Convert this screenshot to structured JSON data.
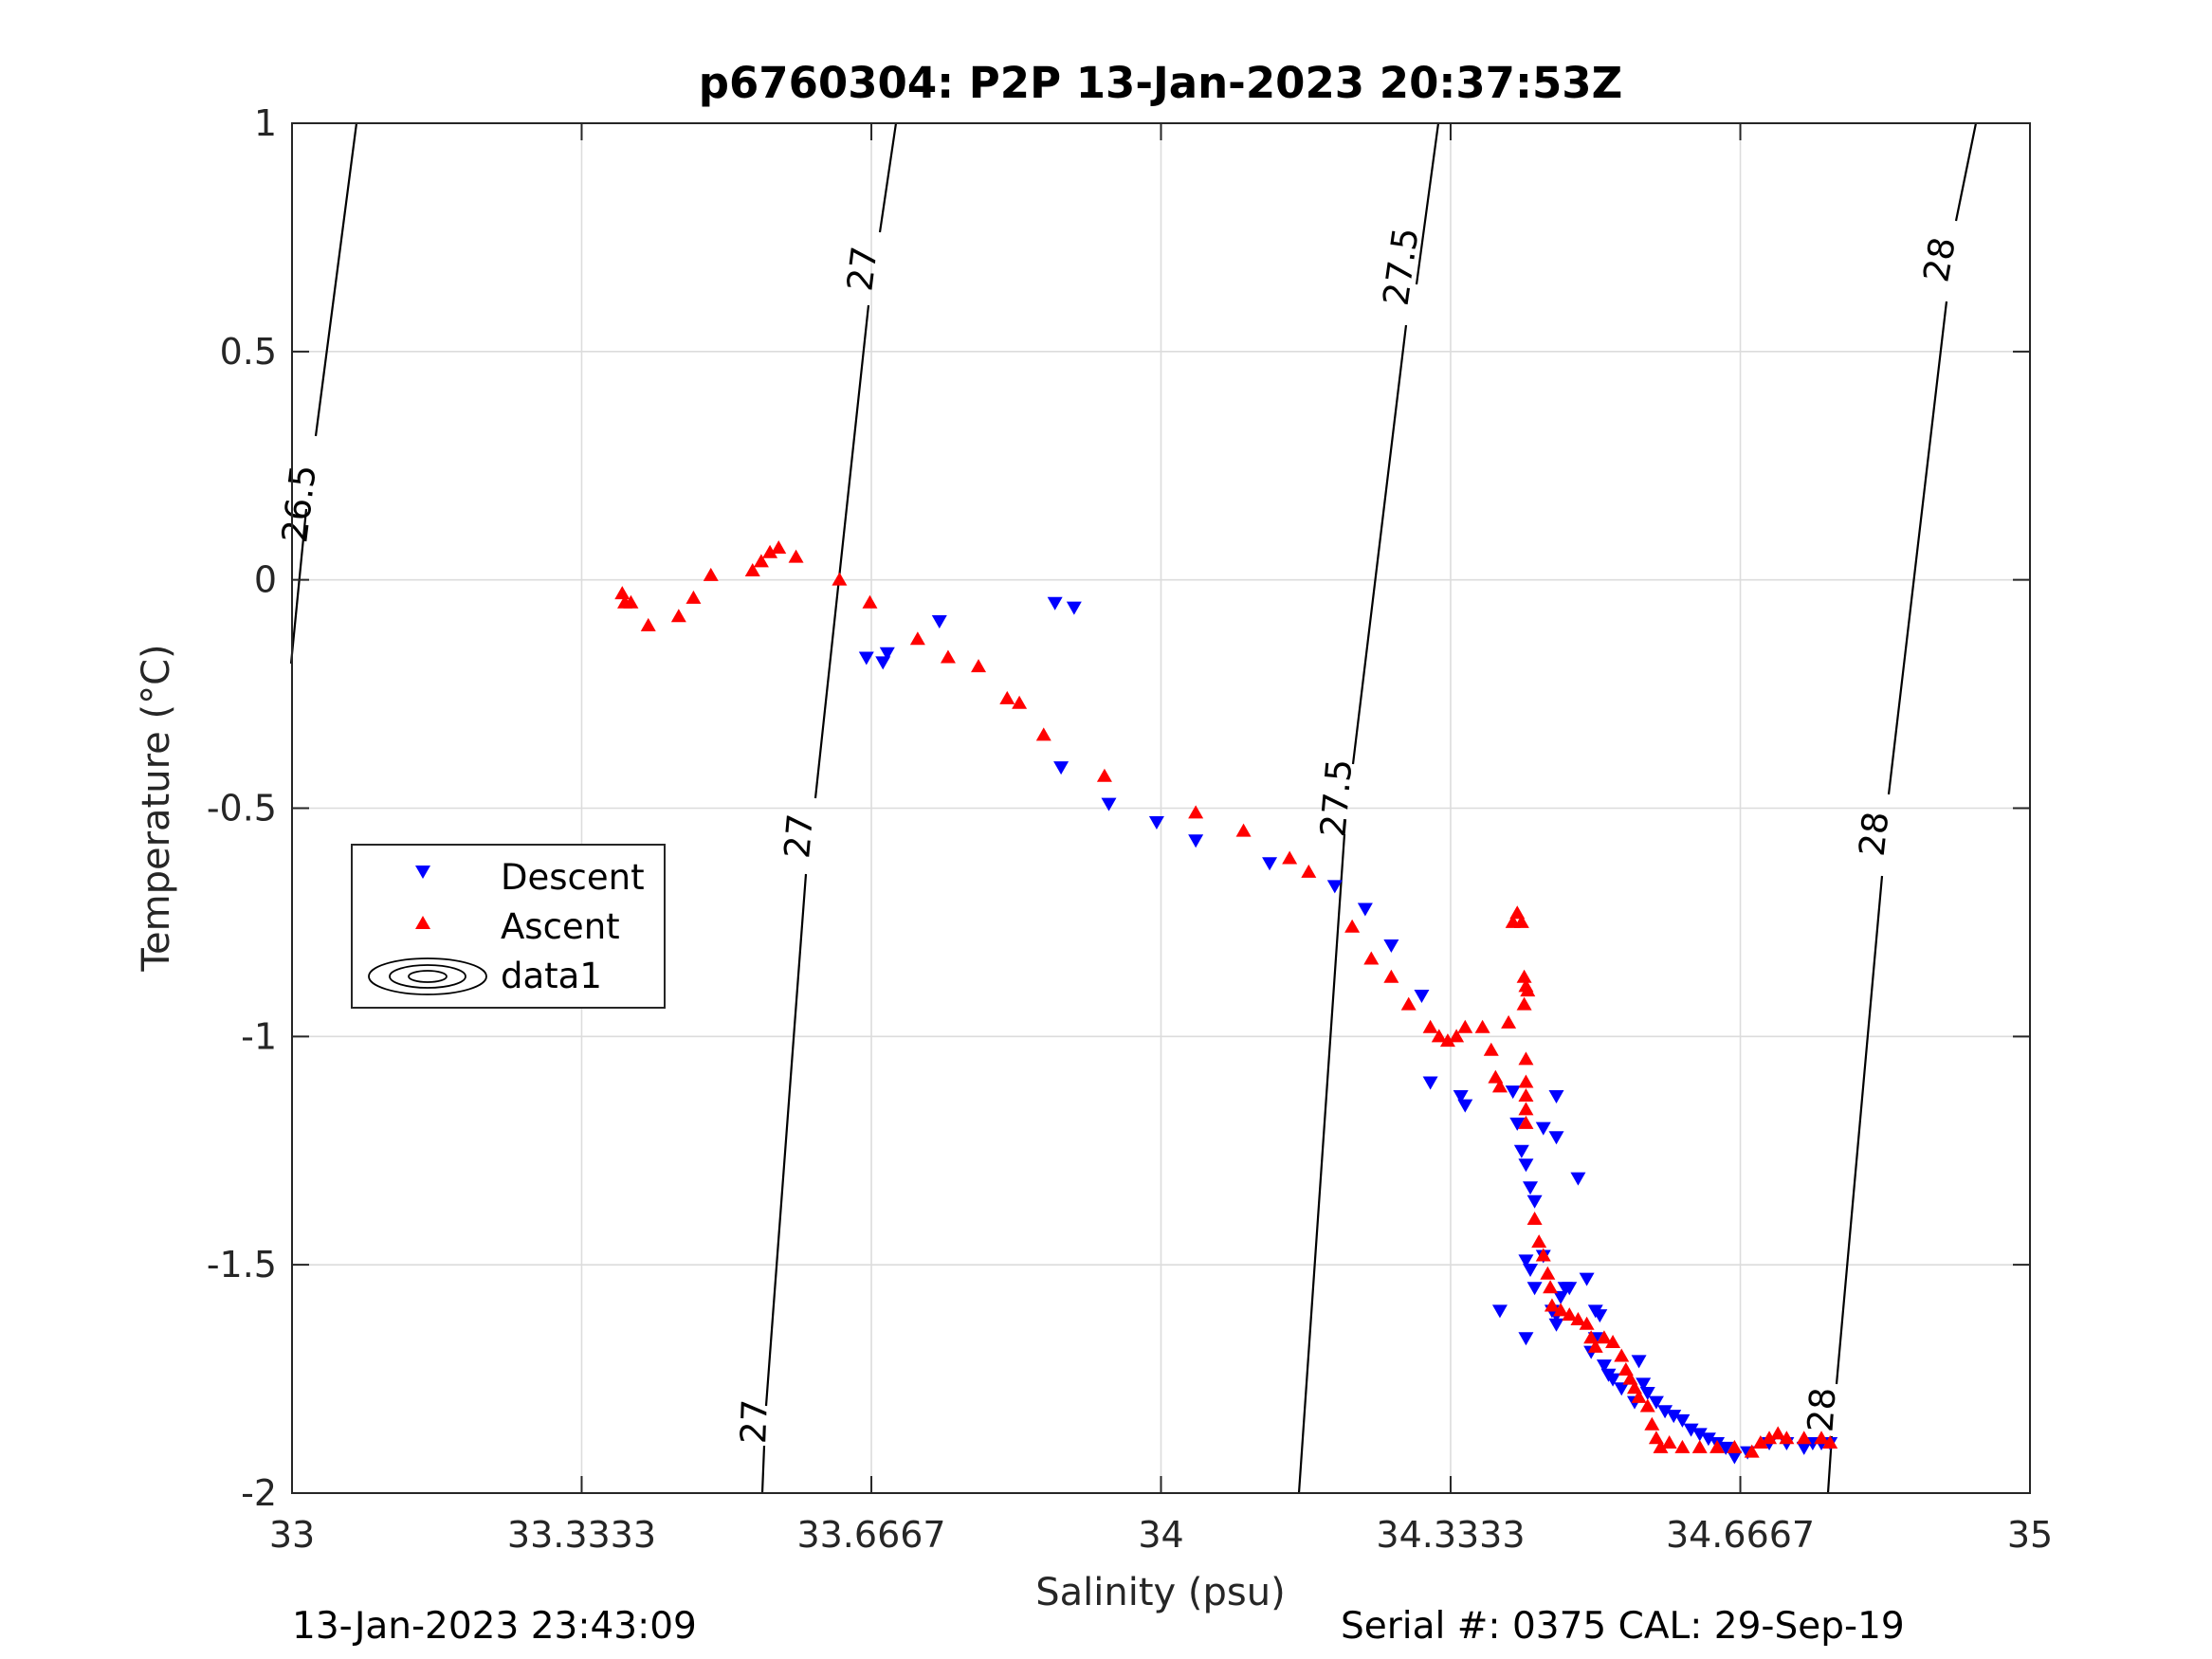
{
  "chart_data": {
    "type": "scatter",
    "title": "p6760304: P2P 13-Jan-2023 20:37:53Z",
    "xlabel": "Salinity (psu)",
    "ylabel": "Temperature (°C)",
    "xlim": [
      33,
      35
    ],
    "ylim": [
      -2,
      1
    ],
    "xticks": [
      33,
      33.3333,
      33.6667,
      34,
      34.3333,
      34.6667,
      35
    ],
    "xtick_labels": [
      "33",
      "33.3333",
      "33.6667",
      "34",
      "34.3333",
      "34.6667",
      "35"
    ],
    "yticks": [
      -2,
      -1.5,
      -1,
      -0.5,
      0,
      0.5,
      1
    ],
    "ytick_labels": [
      "-2",
      "-1.5",
      "-1",
      "-0.5",
      "0",
      "0.5",
      "1"
    ],
    "grid": true,
    "legend_position": "left-middle",
    "series": [
      {
        "name": "Descent",
        "marker": "triangle-down",
        "color": "#0000ff",
        "points": [
          [
            33.661,
            -0.17
          ],
          [
            33.685,
            -0.16
          ],
          [
            33.68,
            -0.18
          ],
          [
            33.745,
            -0.09
          ],
          [
            33.878,
            -0.05
          ],
          [
            33.9,
            -0.06
          ],
          [
            33.885,
            -0.41
          ],
          [
            33.94,
            -0.49
          ],
          [
            33.995,
            -0.53
          ],
          [
            34.04,
            -0.57
          ],
          [
            34.125,
            -0.62
          ],
          [
            34.2,
            -0.67
          ],
          [
            34.235,
            -0.72
          ],
          [
            34.265,
            -0.8
          ],
          [
            34.3,
            -0.91
          ],
          [
            34.31,
            -1.1
          ],
          [
            34.345,
            -1.13
          ],
          [
            34.35,
            -1.15
          ],
          [
            34.405,
            -1.12
          ],
          [
            34.41,
            -1.19
          ],
          [
            34.415,
            -1.25
          ],
          [
            34.42,
            -1.28
          ],
          [
            34.425,
            -1.33
          ],
          [
            34.43,
            -1.36
          ],
          [
            34.44,
            -1.2
          ],
          [
            34.455,
            -1.13
          ],
          [
            34.455,
            -1.22
          ],
          [
            34.48,
            -1.31
          ],
          [
            34.42,
            -1.49
          ],
          [
            34.425,
            -1.51
          ],
          [
            34.43,
            -1.55
          ],
          [
            34.44,
            -1.48
          ],
          [
            34.45,
            -1.6
          ],
          [
            34.455,
            -1.61
          ],
          [
            34.455,
            -1.63
          ],
          [
            34.46,
            -1.57
          ],
          [
            34.465,
            -1.55
          ],
          [
            34.42,
            -1.66
          ],
          [
            34.39,
            -1.6
          ],
          [
            34.47,
            -1.55
          ],
          [
            34.49,
            -1.53
          ],
          [
            34.5,
            -1.6
          ],
          [
            34.505,
            -1.61
          ],
          [
            34.5,
            -1.66
          ],
          [
            34.495,
            -1.69
          ],
          [
            34.51,
            -1.72
          ],
          [
            34.515,
            -1.74
          ],
          [
            34.52,
            -1.75
          ],
          [
            34.53,
            -1.77
          ],
          [
            34.545,
            -1.8
          ],
          [
            34.55,
            -1.71
          ],
          [
            34.555,
            -1.76
          ],
          [
            34.56,
            -1.78
          ],
          [
            34.57,
            -1.8
          ],
          [
            34.58,
            -1.82
          ],
          [
            34.59,
            -1.83
          ],
          [
            34.6,
            -1.84
          ],
          [
            34.61,
            -1.86
          ],
          [
            34.62,
            -1.87
          ],
          [
            34.63,
            -1.88
          ],
          [
            34.64,
            -1.89
          ],
          [
            34.65,
            -1.9
          ],
          [
            34.66,
            -1.92
          ],
          [
            34.675,
            -1.91
          ],
          [
            34.7,
            -1.89
          ],
          [
            34.72,
            -1.89
          ],
          [
            34.74,
            -1.9
          ],
          [
            34.75,
            -1.89
          ],
          [
            34.76,
            -1.89
          ],
          [
            34.77,
            -1.89
          ]
        ]
      },
      {
        "name": "Ascent",
        "marker": "triangle-up",
        "color": "#ff0000",
        "points": [
          [
            33.38,
            -0.03
          ],
          [
            33.383,
            -0.05
          ],
          [
            33.39,
            -0.05
          ],
          [
            33.41,
            -0.1
          ],
          [
            33.445,
            -0.08
          ],
          [
            33.462,
            -0.04
          ],
          [
            33.482,
            0.01
          ],
          [
            33.53,
            0.02
          ],
          [
            33.54,
            0.04
          ],
          [
            33.55,
            0.06
          ],
          [
            33.56,
            0.07
          ],
          [
            33.58,
            0.05
          ],
          [
            33.63,
            0.0
          ],
          [
            33.665,
            -0.05
          ],
          [
            33.72,
            -0.13
          ],
          [
            33.755,
            -0.17
          ],
          [
            33.79,
            -0.19
          ],
          [
            33.823,
            -0.26
          ],
          [
            33.837,
            -0.27
          ],
          [
            33.865,
            -0.34
          ],
          [
            33.935,
            -0.43
          ],
          [
            34.04,
            -0.51
          ],
          [
            34.095,
            -0.55
          ],
          [
            34.148,
            -0.61
          ],
          [
            34.17,
            -0.64
          ],
          [
            34.22,
            -0.76
          ],
          [
            34.242,
            -0.83
          ],
          [
            34.265,
            -0.87
          ],
          [
            34.285,
            -0.93
          ],
          [
            34.31,
            -0.98
          ],
          [
            34.32,
            -1.0
          ],
          [
            34.33,
            -1.01
          ],
          [
            34.34,
            -1.0
          ],
          [
            34.35,
            -0.98
          ],
          [
            34.37,
            -0.98
          ],
          [
            34.38,
            -1.03
          ],
          [
            34.385,
            -1.09
          ],
          [
            34.39,
            -1.11
          ],
          [
            34.4,
            -0.97
          ],
          [
            34.405,
            -0.75
          ],
          [
            34.41,
            -0.73
          ],
          [
            34.415,
            -0.75
          ],
          [
            34.418,
            -0.87
          ],
          [
            34.42,
            -0.89
          ],
          [
            34.422,
            -0.9
          ],
          [
            34.418,
            -0.93
          ],
          [
            34.42,
            -1.05
          ],
          [
            34.42,
            -1.1
          ],
          [
            34.42,
            -1.13
          ],
          [
            34.42,
            -1.16
          ],
          [
            34.42,
            -1.19
          ],
          [
            34.43,
            -1.4
          ],
          [
            34.435,
            -1.45
          ],
          [
            34.44,
            -1.48
          ],
          [
            34.445,
            -1.52
          ],
          [
            34.448,
            -1.55
          ],
          [
            34.45,
            -1.59
          ],
          [
            34.46,
            -1.6
          ],
          [
            34.47,
            -1.61
          ],
          [
            34.48,
            -1.62
          ],
          [
            34.49,
            -1.63
          ],
          [
            34.495,
            -1.66
          ],
          [
            34.5,
            -1.68
          ],
          [
            34.51,
            -1.66
          ],
          [
            34.52,
            -1.67
          ],
          [
            34.53,
            -1.7
          ],
          [
            34.535,
            -1.73
          ],
          [
            34.54,
            -1.75
          ],
          [
            34.545,
            -1.77
          ],
          [
            34.55,
            -1.79
          ],
          [
            34.56,
            -1.81
          ],
          [
            34.565,
            -1.85
          ],
          [
            34.57,
            -1.88
          ],
          [
            34.575,
            -1.9
          ],
          [
            34.585,
            -1.89
          ],
          [
            34.6,
            -1.9
          ],
          [
            34.62,
            -1.9
          ],
          [
            34.64,
            -1.9
          ],
          [
            34.66,
            -1.9
          ],
          [
            34.68,
            -1.91
          ],
          [
            34.69,
            -1.89
          ],
          [
            34.7,
            -1.88
          ],
          [
            34.71,
            -1.87
          ],
          [
            34.72,
            -1.88
          ],
          [
            34.74,
            -1.88
          ],
          [
            34.76,
            -1.88
          ],
          [
            34.77,
            -1.89
          ]
        ]
      }
    ],
    "legend_entries": [
      "Descent",
      "Ascent",
      "data1"
    ],
    "contour_labels": [
      "26.5",
      "27",
      "27",
      "27",
      "27.5",
      "27.5",
      "28",
      "28",
      "28"
    ]
  },
  "footer": {
    "left": "13-Jan-2023 23:43:09",
    "right": "Serial #: 0375  CAL: 29-Sep-19"
  }
}
